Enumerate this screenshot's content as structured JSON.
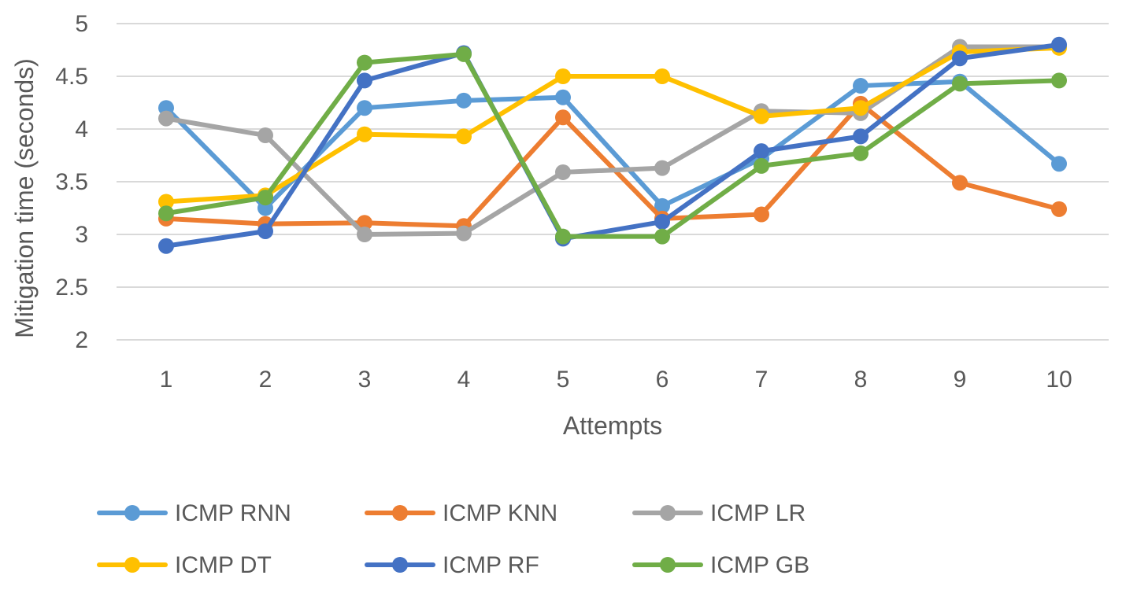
{
  "chart_data": {
    "type": "line",
    "title": "",
    "xlabel": "Attempts",
    "ylabel": "Mitigation time (seconds)",
    "categories": [
      "1",
      "2",
      "3",
      "4",
      "5",
      "6",
      "7",
      "8",
      "9",
      "10"
    ],
    "ylim": [
      2,
      5
    ],
    "yticks": [
      2,
      2.5,
      3,
      3.5,
      4,
      4.5,
      5
    ],
    "ytick_labels": [
      "2",
      "2.5",
      "3",
      "3.5",
      "4",
      "4.5",
      "5"
    ],
    "grid": true,
    "legend_position": "bottom",
    "series": [
      {
        "name": "ICMP RNN",
        "color": "#5B9BD5",
        "values": [
          4.2,
          3.25,
          4.2,
          4.27,
          4.3,
          3.27,
          3.72,
          4.41,
          4.45,
          3.67
        ]
      },
      {
        "name": "ICMP KNN",
        "color": "#ED7D31",
        "values": [
          3.15,
          3.1,
          3.11,
          3.08,
          4.11,
          3.15,
          3.19,
          4.24,
          3.49,
          3.24
        ]
      },
      {
        "name": "ICMP LR",
        "color": "#A5A5A5",
        "values": [
          4.1,
          3.94,
          3.0,
          3.01,
          3.59,
          3.63,
          4.17,
          4.15,
          4.78,
          4.78
        ]
      },
      {
        "name": "ICMP DT",
        "color": "#FFC000",
        "values": [
          3.31,
          3.37,
          3.95,
          3.93,
          4.5,
          4.5,
          4.12,
          4.2,
          4.73,
          4.77
        ]
      },
      {
        "name": "ICMP RF",
        "color": "#4472C4",
        "values": [
          2.89,
          3.03,
          4.46,
          4.72,
          2.96,
          3.12,
          3.79,
          3.93,
          4.67,
          4.8
        ]
      },
      {
        "name": "ICMP GB",
        "color": "#70AD47",
        "values": [
          3.2,
          3.35,
          4.63,
          4.71,
          2.98,
          2.98,
          3.65,
          3.77,
          4.43,
          4.46
        ]
      }
    ]
  }
}
